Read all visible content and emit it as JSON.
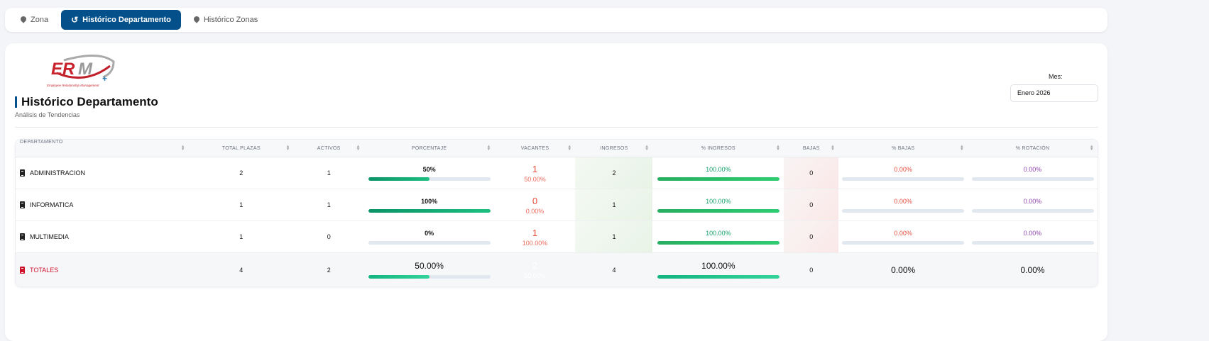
{
  "tabs": [
    {
      "label": "Zona",
      "icon": "map-pin-icon",
      "active": false
    },
    {
      "label": "Histórico Departamento",
      "icon": "history-icon",
      "active": true
    },
    {
      "label": "Histórico Zonas",
      "icon": "map-pin-icon",
      "active": false
    }
  ],
  "logo": {
    "text": "ERM",
    "subtitle": "Employee Relationship Management"
  },
  "page": {
    "title": "Histórico Departamento",
    "subtitle": "Análisis de Tendencias"
  },
  "filter": {
    "label": "Mes:",
    "value": "Enero 2026"
  },
  "colors": {
    "primary": "#04508a",
    "green": "#16a16a",
    "red": "#e74c3c",
    "purple": "#8e44ad"
  },
  "table": {
    "headers": [
      "DEPARTAMENTO",
      "TOTAL PLAZAS",
      "ACTIVOS",
      "PORCENTAJE",
      "VACANTES",
      "INGRESOS",
      "% INGRESOS",
      "BAJAS",
      "% BAJAS",
      "% ROTACIÓN"
    ],
    "rows": [
      {
        "dept": "ADMINISTRACION",
        "total": "2",
        "activos": "1",
        "porcentaje": "50%",
        "porcentaje_value": 50,
        "vacantes": "1",
        "vacantes_pct": "50.00%",
        "ingresos": "2",
        "pct_ingresos": "100.00%",
        "pct_ingresos_value": 100,
        "bajas": "0",
        "pct_bajas": "0.00%",
        "pct_bajas_value": 0,
        "rotacion": "0.00%",
        "rotacion_value": 0
      },
      {
        "dept": "INFORMATICA",
        "total": "1",
        "activos": "1",
        "porcentaje": "100%",
        "porcentaje_value": 100,
        "vacantes": "0",
        "vacantes_pct": "0.00%",
        "ingresos": "1",
        "pct_ingresos": "100.00%",
        "pct_ingresos_value": 100,
        "bajas": "0",
        "pct_bajas": "0.00%",
        "pct_bajas_value": 0,
        "rotacion": "0.00%",
        "rotacion_value": 0
      },
      {
        "dept": "MULTIMEDIA",
        "total": "1",
        "activos": "0",
        "porcentaje": "0%",
        "porcentaje_value": 0,
        "vacantes": "1",
        "vacantes_pct": "100.00%",
        "ingresos": "1",
        "pct_ingresos": "100.00%",
        "pct_ingresos_value": 100,
        "bajas": "0",
        "pct_bajas": "0.00%",
        "pct_bajas_value": 0,
        "rotacion": "0.00%",
        "rotacion_value": 0
      }
    ],
    "totals": {
      "dept": "TOTALES",
      "total": "4",
      "activos": "2",
      "porcentaje": "50.00%",
      "porcentaje_value": 50,
      "vacantes": "2",
      "vacantes_pct": "50.00%",
      "ingresos": "4",
      "pct_ingresos": "100.00%",
      "pct_ingresos_value": 100,
      "bajas": "0",
      "pct_bajas": "0.00%",
      "rotacion": "0.00%"
    }
  }
}
